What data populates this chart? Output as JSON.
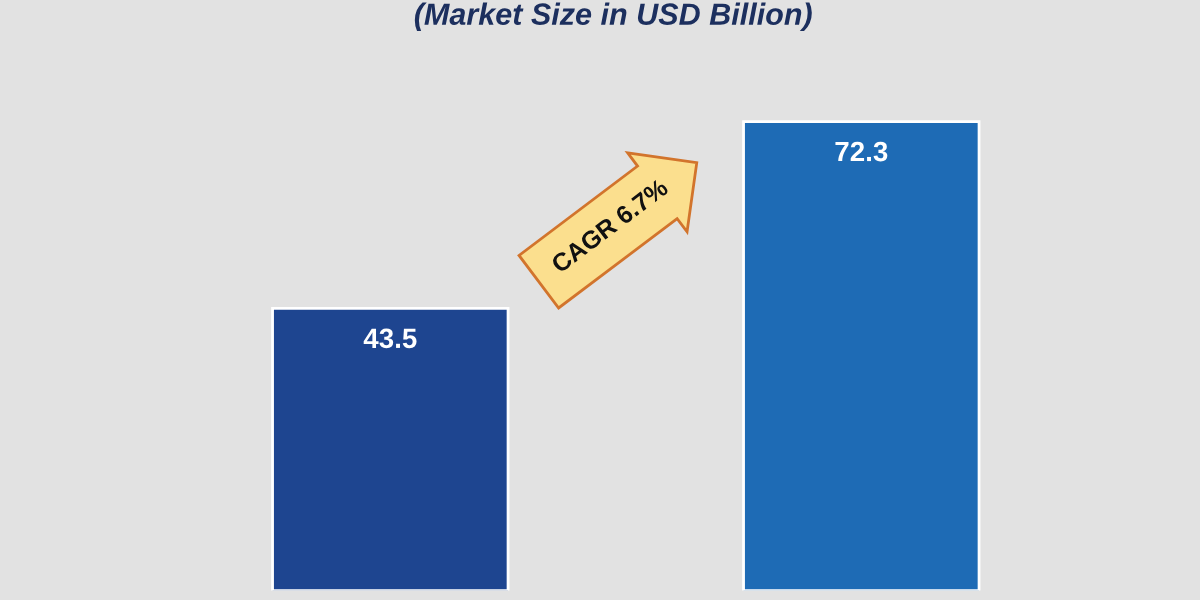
{
  "chart_data": {
    "type": "bar",
    "title": "(Market Size in USD Billion)",
    "categories": [
      null,
      null
    ],
    "values": [
      43.5,
      72.3
    ],
    "colors": [
      "#1e4590",
      "#1e6bb5"
    ],
    "data_labels": true,
    "annotations": [
      "CAGR 6.7%"
    ],
    "grid": false,
    "legend": false
  }
}
